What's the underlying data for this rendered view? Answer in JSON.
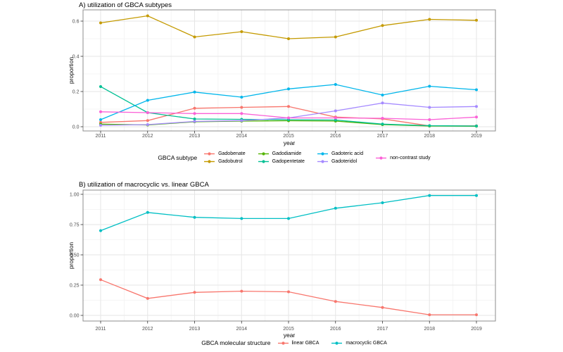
{
  "figure": {
    "background": "#ffffff",
    "grid_major_color": "#e5e5e5",
    "grid_minor_color": "#f2f2f2",
    "panel_border_color": "#8c8c8c",
    "tick_color": "#333333",
    "tick_label_color": "#4d4d4d"
  },
  "chart_data": [
    {
      "id": "A",
      "type": "line",
      "title": "A) utilization of GBCA subtypes",
      "xlabel": "year",
      "ylabel": "proportion",
      "legend_title": "GBCA subtype",
      "legend_position": "bottom",
      "legend_rows": 2,
      "grid": true,
      "x": [
        2011,
        2012,
        2013,
        2014,
        2015,
        2016,
        2017,
        2018,
        2019
      ],
      "x_tick_labels": [
        "2011",
        "2012",
        "2013",
        "2014",
        "2015",
        "2016",
        "2017",
        "2018",
        "2019"
      ],
      "y_ticks": [
        {
          "label": "0.0",
          "value": 0.0
        },
        {
          "label": "0.2",
          "value": 0.2
        },
        {
          "label": "0.4",
          "value": 0.4
        },
        {
          "label": "0.6",
          "value": 0.6
        }
      ],
      "ylim": [
        -0.024,
        0.664
      ],
      "series": [
        {
          "name": "Gadobenate",
          "color": "#F8766D",
          "values": [
            0.025,
            0.035,
            0.105,
            0.11,
            0.115,
            0.055,
            0.045,
            0.005,
            0.005
          ]
        },
        {
          "name": "Gadobutrol",
          "color": "#C49A00",
          "values": [
            0.59,
            0.63,
            0.51,
            0.54,
            0.5,
            0.51,
            0.575,
            0.61,
            0.605
          ]
        },
        {
          "name": "Gadodiamide",
          "color": "#53B400",
          "values": [
            0.015,
            0.01,
            0.028,
            0.032,
            0.034,
            0.032,
            0.012,
            0.004,
            0.003
          ]
        },
        {
          "name": "Gadopentetate",
          "color": "#00C094",
          "values": [
            0.228,
            0.08,
            0.044,
            0.042,
            0.04,
            0.038,
            0.015,
            0.006,
            0.004
          ]
        },
        {
          "name": "Gadoteric acid",
          "color": "#00B6EB",
          "values": [
            0.04,
            0.15,
            0.197,
            0.168,
            0.215,
            0.24,
            0.18,
            0.23,
            0.21
          ]
        },
        {
          "name": "Gadoteridol",
          "color": "#A58AFF",
          "values": [
            0.008,
            0.012,
            0.03,
            0.035,
            0.05,
            0.09,
            0.135,
            0.11,
            0.115
          ]
        },
        {
          "name": "non-contrast study",
          "color": "#FB61D7",
          "values": [
            0.085,
            0.08,
            0.075,
            0.075,
            0.05,
            0.05,
            0.048,
            0.04,
            0.055
          ]
        }
      ]
    },
    {
      "id": "B",
      "type": "line",
      "title": "B) utilization of macrocyclic vs. linear GBCA",
      "xlabel": "year",
      "ylabel": "proportion",
      "legend_title": "GBCA molecular structure",
      "legend_position": "bottom",
      "legend_rows": 1,
      "grid": true,
      "x": [
        2011,
        2012,
        2013,
        2014,
        2015,
        2016,
        2017,
        2018,
        2019
      ],
      "x_tick_labels": [
        "2011",
        "2012",
        "2013",
        "2014",
        "2015",
        "2016",
        "2017",
        "2018",
        "2019"
      ],
      "y_ticks": [
        {
          "label": "0.00",
          "value": 0.0
        },
        {
          "label": "0.25",
          "value": 0.25
        },
        {
          "label": "0.50",
          "value": 0.5
        },
        {
          "label": "0.75",
          "value": 0.75
        },
        {
          "label": "1.00",
          "value": 1.0
        }
      ],
      "ylim": [
        -0.035,
        1.035
      ],
      "series": [
        {
          "name": "linear GBCA",
          "color": "#F8766D",
          "values": [
            0.295,
            0.14,
            0.19,
            0.2,
            0.195,
            0.115,
            0.065,
            0.005,
            0.005
          ]
        },
        {
          "name": "macrocyclic GBCA",
          "color": "#00BFC4",
          "values": [
            0.7,
            0.85,
            0.81,
            0.8,
            0.8,
            0.885,
            0.93,
            0.99,
            0.99
          ]
        }
      ]
    }
  ]
}
